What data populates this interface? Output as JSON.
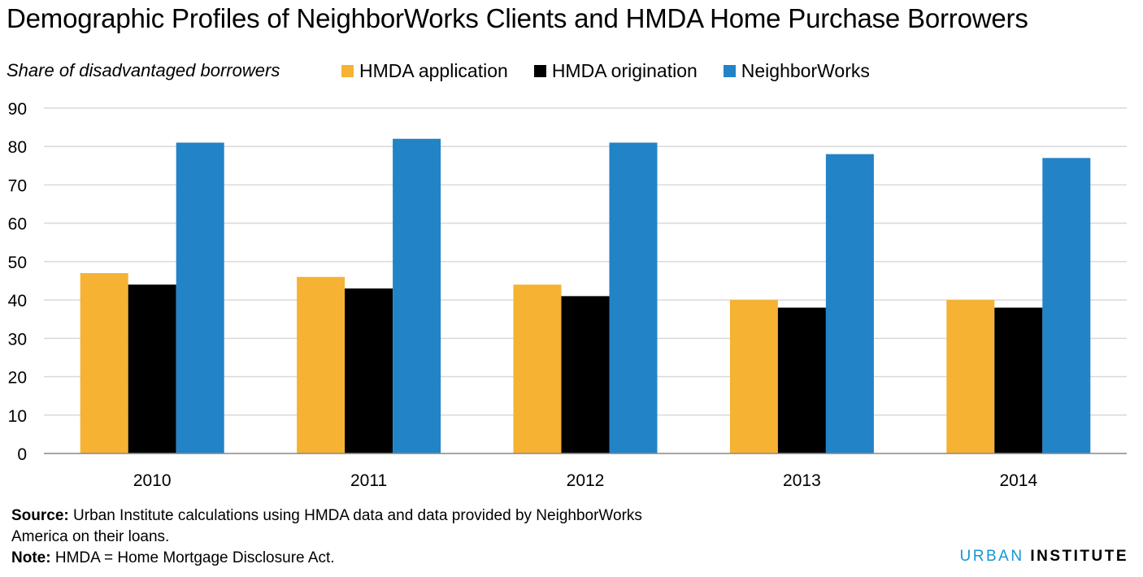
{
  "title": "Demographic Profiles of NeighborWorks Clients and HMDA Home Purchase Borrowers",
  "subtitle": "Share of disadvantaged borrowers",
  "colors": {
    "hmda_application": "#f5b233",
    "hmda_origination": "#000000",
    "neighborworks": "#2283c7",
    "grid": "#d9d9d9",
    "axis": "#888888"
  },
  "chart_data": {
    "type": "bar",
    "title": "Demographic Profiles of NeighborWorks Clients and HMDA Home Purchase Borrowers",
    "ylabel": "Share of disadvantaged borrowers",
    "xlabel": "",
    "categories": [
      "2010",
      "2011",
      "2012",
      "2013",
      "2014"
    ],
    "series": [
      {
        "name": "HMDA application",
        "values": [
          47,
          46,
          44,
          40,
          40
        ]
      },
      {
        "name": "HMDA origination",
        "values": [
          44,
          43,
          41,
          38,
          38
        ]
      },
      {
        "name": "NeighborWorks",
        "values": [
          81,
          82,
          81,
          78,
          77
        ]
      }
    ],
    "ylim": [
      0,
      90
    ],
    "yticks": [
      0,
      10,
      20,
      30,
      40,
      50,
      60,
      70,
      80,
      90
    ],
    "grid": true,
    "legend": "top"
  },
  "footer": {
    "source_label": "Source:",
    "source_text_1": " Urban Institute calculations using HMDA data and data provided by NeighborWorks",
    "source_text_2": "America on their loans.",
    "note_label": "Note:",
    "note_text": " HMDA = Home Mortgage Disclosure Act."
  },
  "brand": {
    "part1": "URBAN",
    "part2": "INSTITUTE"
  }
}
